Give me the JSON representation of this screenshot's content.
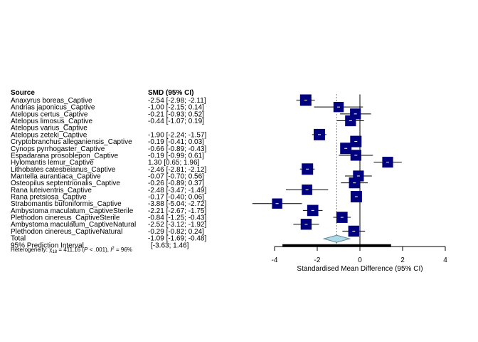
{
  "chart_data": {
    "type": "forest",
    "header": {
      "source": "Source",
      "smd": "SMD (95% CI)"
    },
    "xlabel": "Standardised Mean Difference (95% CI)",
    "xlim": [
      -4,
      4
    ],
    "xticks": [
      -4,
      -2,
      0,
      2,
      4
    ],
    "null_line": 0,
    "colors": {
      "box": "#00007f",
      "diamond": "#add8e6",
      "prediction": "#000000",
      "axis": "#000000"
    },
    "studies": [
      {
        "label": "Anaxyrus boreas_Captive",
        "smd": -2.54,
        "lo": -2.98,
        "hi": -2.11,
        "text": "-2.54 [-2.98; -2.11]",
        "w": 1.0
      },
      {
        "label": "Andrias japonicus_Captive",
        "smd": -1.0,
        "lo": -2.15,
        "hi": 0.14,
        "text": "-1.00 [-2.15;  0.14]",
        "w": 0.9
      },
      {
        "label": "Atelopus certus_Captive",
        "smd": -0.21,
        "lo": -0.93,
        "hi": 0.52,
        "text": "-0.21 [-0.93;  0.52]",
        "w": 0.95
      },
      {
        "label": "Atelopus limosus_Captive",
        "smd": -0.44,
        "lo": -1.07,
        "hi": 0.19,
        "text": "-0.44 [-1.07;  0.19]",
        "w": 0.95
      },
      {
        "label": "Atelopus varius_Captive",
        "smd": null,
        "lo": null,
        "hi": null,
        "text": "",
        "w": 0
      },
      {
        "label": "Atelopus zeteki_Captive",
        "smd": -1.9,
        "lo": -2.24,
        "hi": -1.57,
        "text": "-1.90 [-2.24; -1.57]",
        "w": 1.0
      },
      {
        "label": "Cryptobranchus alleganiensis_Captive",
        "smd": -0.19,
        "lo": -0.41,
        "hi": 0.03,
        "text": "-0.19 [-0.41;  0.03]",
        "w": 1.0
      },
      {
        "label": "Cynops pyrrhogaster_Captive",
        "smd": -0.66,
        "lo": -0.89,
        "hi": -0.43,
        "text": "-0.66 [-0.89; -0.43]",
        "w": 1.0
      },
      {
        "label": "Espadarana prosoblepon_Captive",
        "smd": -0.19,
        "lo": -0.99,
        "hi": 0.61,
        "text": "-0.19 [-0.99;  0.61]",
        "w": 0.95
      },
      {
        "label": "Hylomantis lemur_Captive",
        "smd": 1.3,
        "lo": 0.65,
        "hi": 1.96,
        "text": "1.30 [0.65;  1.96]",
        "w": 0.95
      },
      {
        "label": "Lithobates catesbeianus_Captive",
        "smd": -2.46,
        "lo": -2.81,
        "hi": -2.12,
        "text": "-2.46 [-2.81; -2.12]",
        "w": 1.0
      },
      {
        "label": "Mantella aurantiaca_Captive",
        "smd": -0.07,
        "lo": -0.7,
        "hi": 0.56,
        "text": "-0.07 [-0.70;  0.56]",
        "w": 0.95
      },
      {
        "label": "Osteopilus septentrionalis_Captive",
        "smd": -0.26,
        "lo": -0.89,
        "hi": 0.37,
        "text": "-0.26 [-0.89;  0.37]",
        "w": 0.95
      },
      {
        "label": "Rana luteiventris_Captive",
        "smd": -2.48,
        "lo": -3.47,
        "hi": -1.49,
        "text": "-2.48 [-3.47; -1.49]",
        "w": 0.92
      },
      {
        "label": "Rana pretsiosa_Captive",
        "smd": -0.17,
        "lo": -0.4,
        "hi": 0.06,
        "text": "-0.17 [-0.40;  0.06]",
        "w": 1.0
      },
      {
        "label": "Strabomantis bufoniformis_Captive",
        "smd": -3.88,
        "lo": -5.04,
        "hi": -2.72,
        "text": "-3.88 [-5.04; -2.72]",
        "w": 0.9
      },
      {
        "label": "Ambystoma maculatum_CaptiveSterile",
        "smd": -2.21,
        "lo": -2.67,
        "hi": -1.75,
        "text": "-2.21 [-2.67; -1.75]",
        "w": 0.98
      },
      {
        "label": "Plethodon cinereus_CaptiveSterile",
        "smd": -0.84,
        "lo": -1.25,
        "hi": -0.43,
        "text": "-0.84 [-1.25; -0.43]",
        "w": 0.98
      },
      {
        "label": "Ambystoma maculatum_CaptiveNatural",
        "smd": -2.52,
        "lo": -3.12,
        "hi": -1.92,
        "text": "-2.52 [-3.12; -1.92]",
        "w": 0.96
      },
      {
        "label": "Plethodon cinereus_CaptiveNatural",
        "smd": -0.29,
        "lo": -0.82,
        "hi": 0.24,
        "text": "-0.29 [-0.82;  0.24]",
        "w": 0.96
      }
    ],
    "total": {
      "label": "Total",
      "smd": -1.09,
      "lo": -1.69,
      "hi": -0.48,
      "text": "-1.09 [-1.69; -0.48]"
    },
    "prediction": {
      "label": "95% Prediction Interval",
      "lo": -3.63,
      "hi": 1.46,
      "text": "[-3.63;  1.46]"
    },
    "heterogeneity": {
      "prefix": "Heterogeneity: ",
      "chi": "χ",
      "df": "18",
      "stat": " = 411.16 (",
      "p_italic": "P",
      "p_value": " < .001), ",
      "i_italic": "I",
      "i_value": " = 96%"
    }
  }
}
